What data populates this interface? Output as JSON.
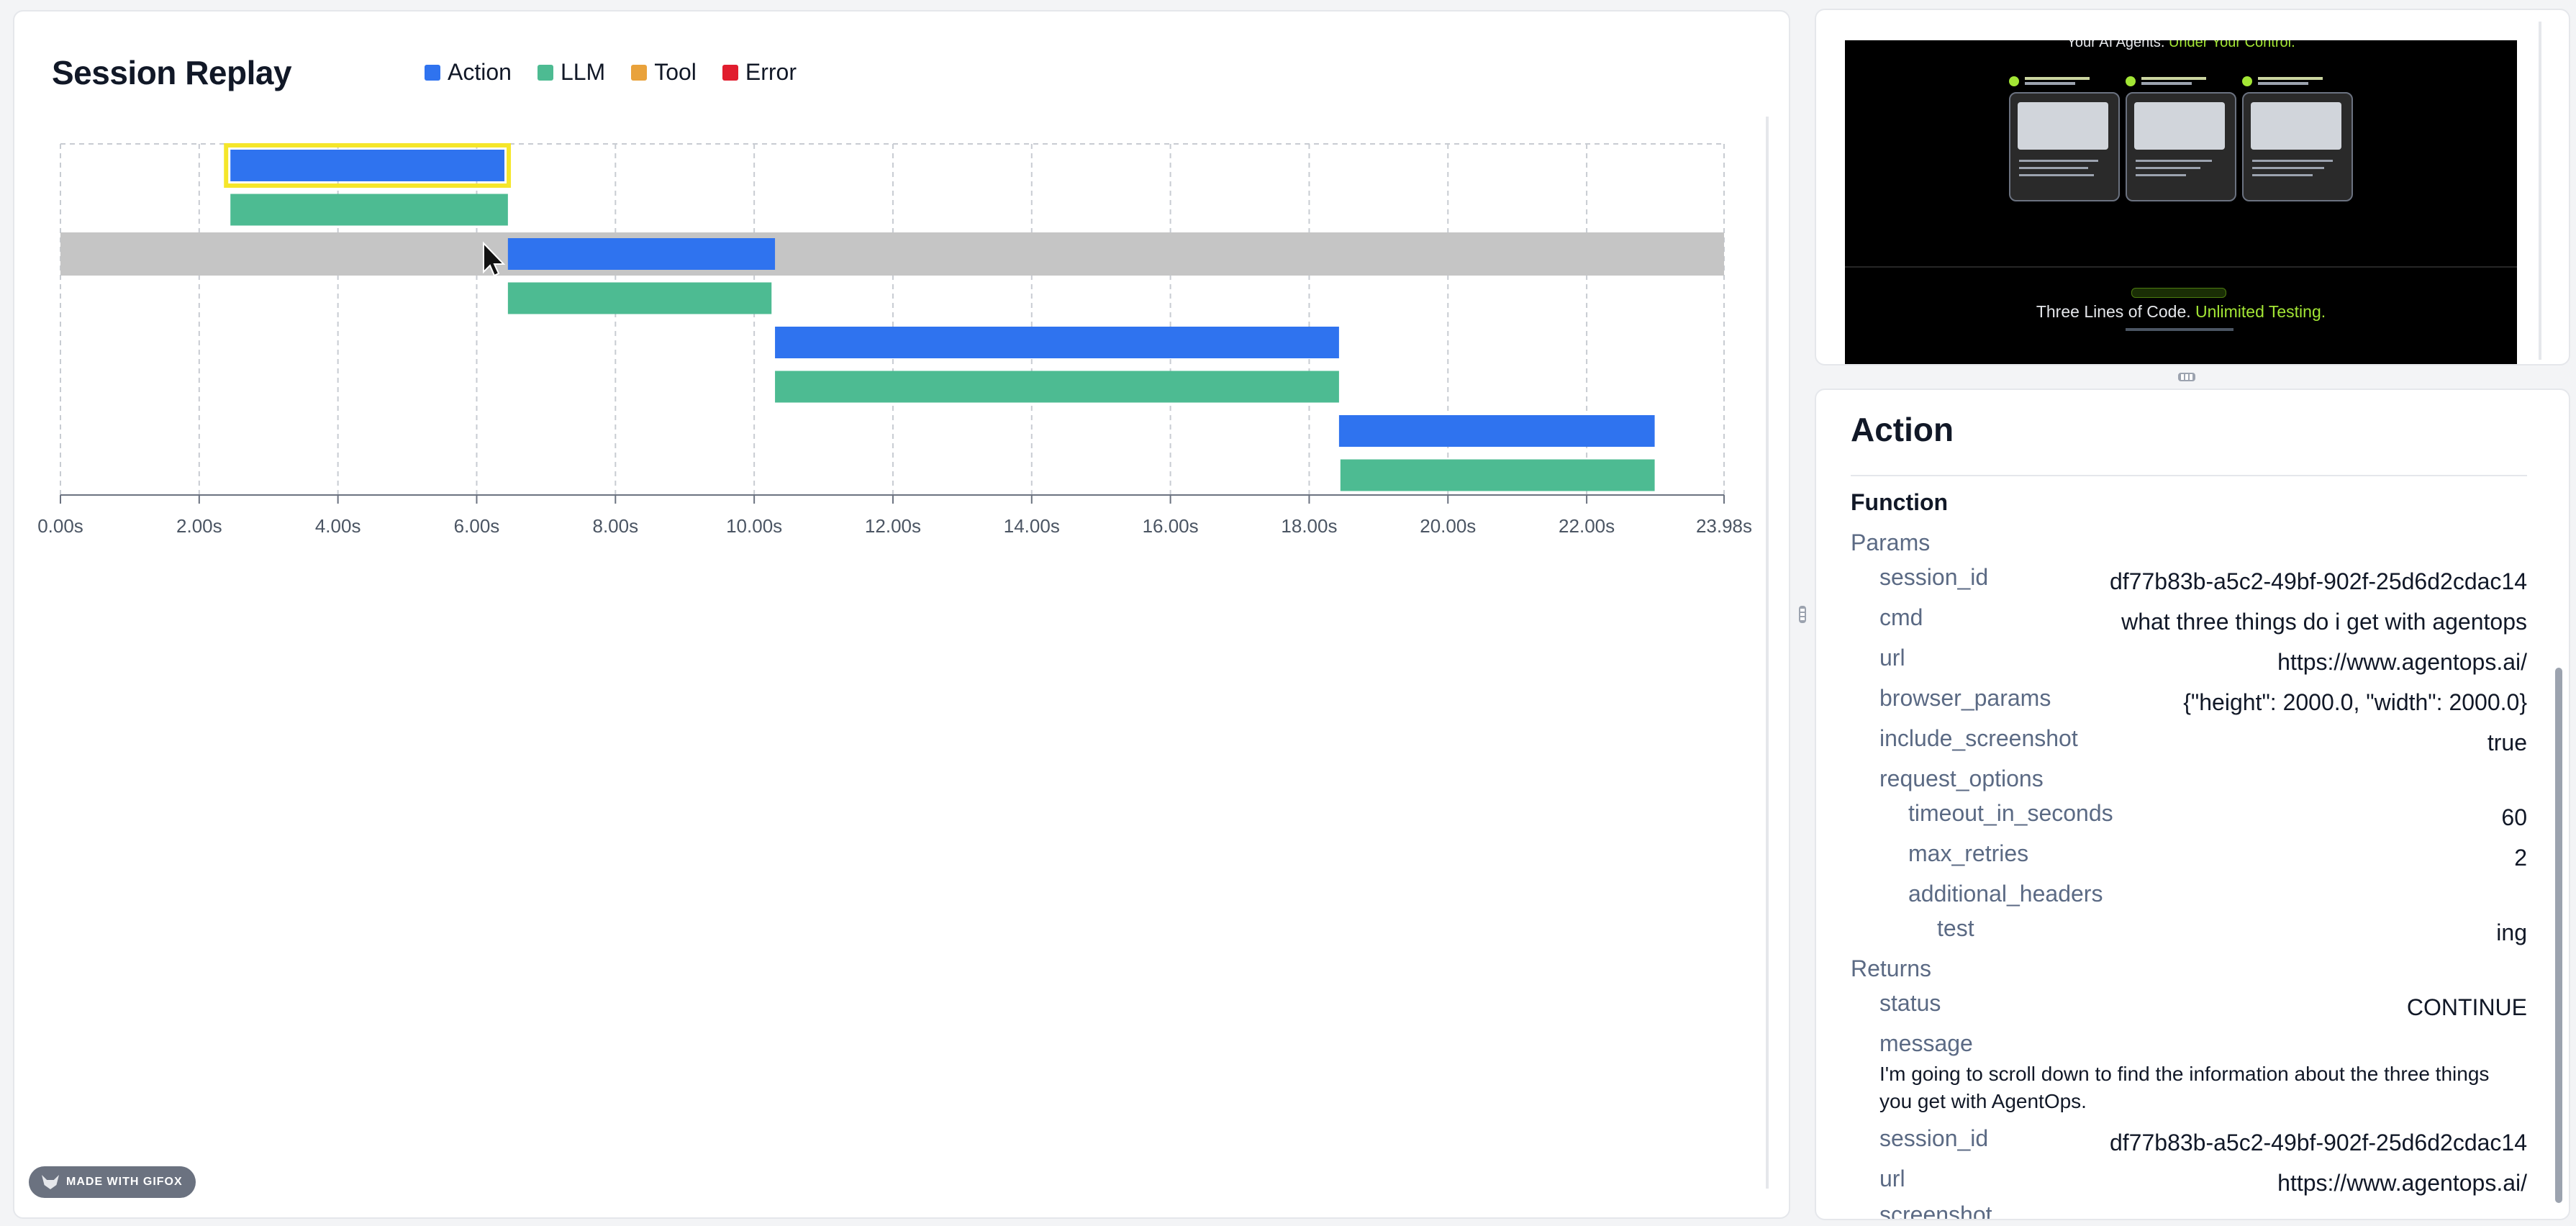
{
  "session_replay": {
    "title": "Session Replay",
    "legend": [
      {
        "label": "Action",
        "color": "#2f73ef"
      },
      {
        "label": "LLM",
        "color": "#4dbb92"
      },
      {
        "label": "Tool",
        "color": "#e9a23b"
      },
      {
        "label": "Error",
        "color": "#e11d2e"
      }
    ],
    "x_ticks": [
      "0.00s",
      "2.00s",
      "4.00s",
      "6.00s",
      "8.00s",
      "10.00s",
      "12.00s",
      "14.00s",
      "16.00s",
      "18.00s",
      "20.00s",
      "22.00s",
      "23.98s"
    ],
    "x_max": 23.98,
    "events": [
      {
        "type": "action",
        "start": 2.45,
        "end": 6.4,
        "selected": true
      },
      {
        "type": "llm",
        "start": 2.45,
        "end": 6.45
      },
      {
        "type": "action",
        "start": 6.45,
        "end": 10.3,
        "hovered": true
      },
      {
        "type": "llm",
        "start": 6.45,
        "end": 10.25
      },
      {
        "type": "action",
        "start": 10.3,
        "end": 18.43
      },
      {
        "type": "llm",
        "start": 10.3,
        "end": 18.43
      },
      {
        "type": "action",
        "start": 18.43,
        "end": 22.98
      },
      {
        "type": "llm",
        "start": 18.45,
        "end": 22.98
      }
    ],
    "watermark": "MADE WITH GIFOX"
  },
  "screenshot": {
    "tagline_start": "Your AI Agents.",
    "tagline_highlight": "Under Your Control.",
    "headline_start": "Three Lines of Code.",
    "headline_highlight": "Unlimited Testing."
  },
  "detail": {
    "title": "Action",
    "function_label": "Function",
    "params_label": "Params",
    "params": {
      "session_id": {
        "key": "session_id",
        "value": "df77b83b-a5c2-49bf-902f-25d6d2cdac14"
      },
      "cmd": {
        "key": "cmd",
        "value": "what three things do i get with agentops"
      },
      "url": {
        "key": "url",
        "value": "https://www.agentops.ai/"
      },
      "browser_params": {
        "key": "browser_params",
        "value": "{\"height\": 2000.0, \"width\": 2000.0}"
      },
      "include_screenshot": {
        "key": "include_screenshot",
        "value": "true"
      },
      "request_options": {
        "key": "request_options"
      },
      "timeout_in_seconds": {
        "key": "timeout_in_seconds",
        "value": "60"
      },
      "max_retries": {
        "key": "max_retries",
        "value": "2"
      },
      "additional_headers": {
        "key": "additional_headers"
      },
      "test": {
        "key": "test",
        "value": "ing"
      }
    },
    "returns_label": "Returns",
    "returns": {
      "status": {
        "key": "status",
        "value": "CONTINUE"
      },
      "message": {
        "key": "message",
        "value": "I'm going to scroll down to find the information about the three things you get with AgentOps."
      },
      "session_id": {
        "key": "session_id",
        "value": "df77b83b-a5c2-49bf-902f-25d6d2cdac14"
      },
      "url": {
        "key": "url",
        "value": "https://www.agentops.ai/"
      },
      "screenshot": {
        "key": "screenshot"
      }
    }
  }
}
